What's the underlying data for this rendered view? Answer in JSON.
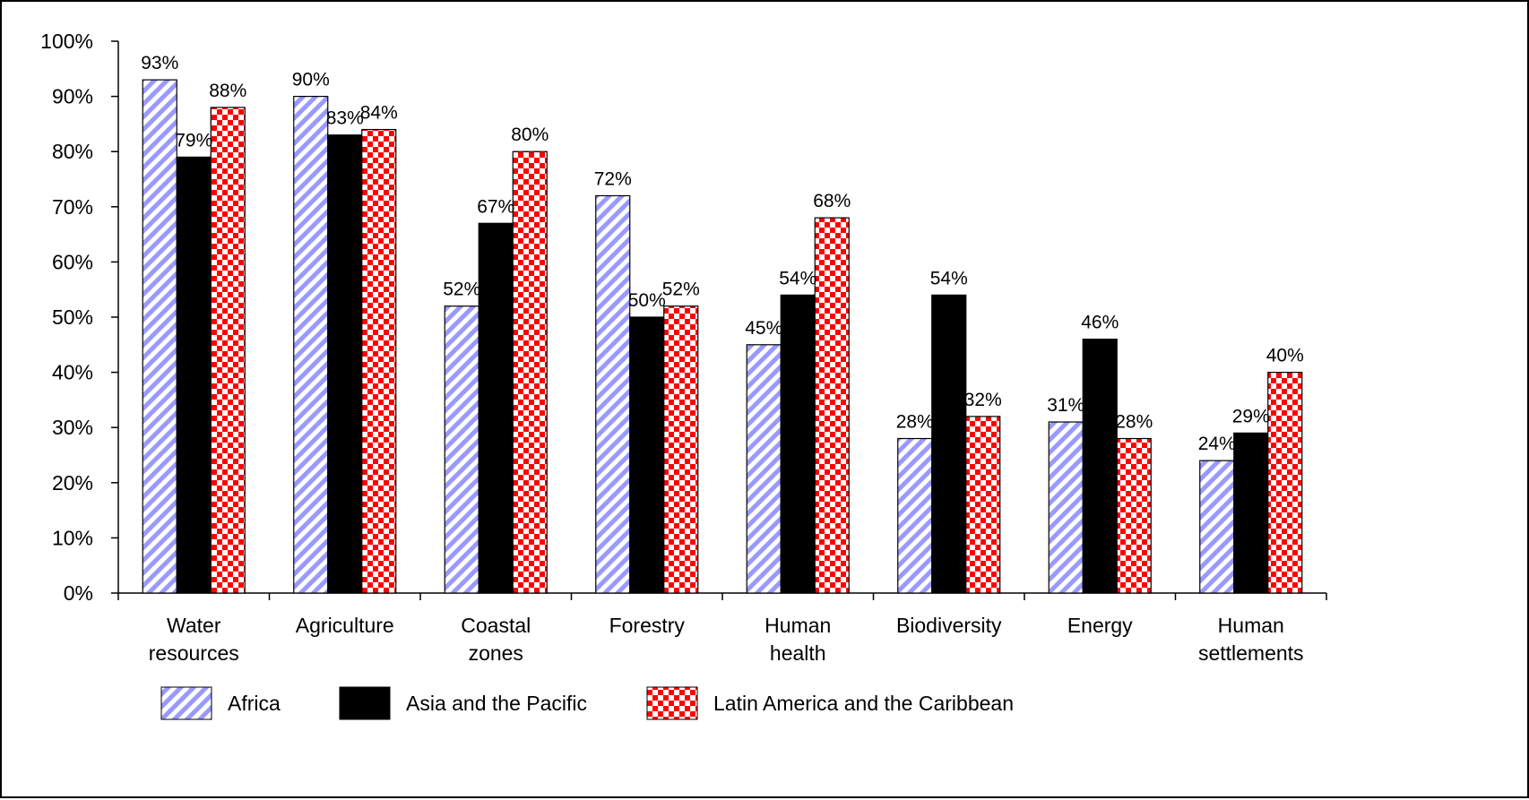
{
  "chart_data": {
    "type": "bar",
    "title": "",
    "xlabel": "",
    "ylabel": "",
    "ylim": [
      0,
      100
    ],
    "yticks": [
      "0%",
      "10%",
      "20%",
      "30%",
      "40%",
      "50%",
      "60%",
      "70%",
      "80%",
      "90%",
      "100%"
    ],
    "categories": [
      [
        "Water",
        "resources"
      ],
      [
        "Agriculture"
      ],
      [
        "Coastal",
        "zones"
      ],
      [
        "Forestry"
      ],
      [
        "Human",
        "health"
      ],
      [
        "Biodiversity"
      ],
      [
        "Energy"
      ],
      [
        "Human",
        "settlements"
      ]
    ],
    "series": [
      {
        "name": "Africa",
        "pattern": "diagonal-stripes",
        "color": "#9999ff",
        "values": [
          93,
          90,
          52,
          72,
          45,
          28,
          31,
          24
        ]
      },
      {
        "name": "Asia and the Pacific",
        "pattern": "solid",
        "color": "#000000",
        "values": [
          79,
          83,
          67,
          50,
          54,
          54,
          46,
          29
        ]
      },
      {
        "name": "Latin America and the Caribbean",
        "pattern": "checkerboard",
        "color": "#ff0000",
        "values": [
          88,
          84,
          80,
          52,
          68,
          32,
          28,
          40
        ]
      }
    ],
    "value_suffix": "%",
    "grid": false,
    "legend_position": "bottom"
  }
}
